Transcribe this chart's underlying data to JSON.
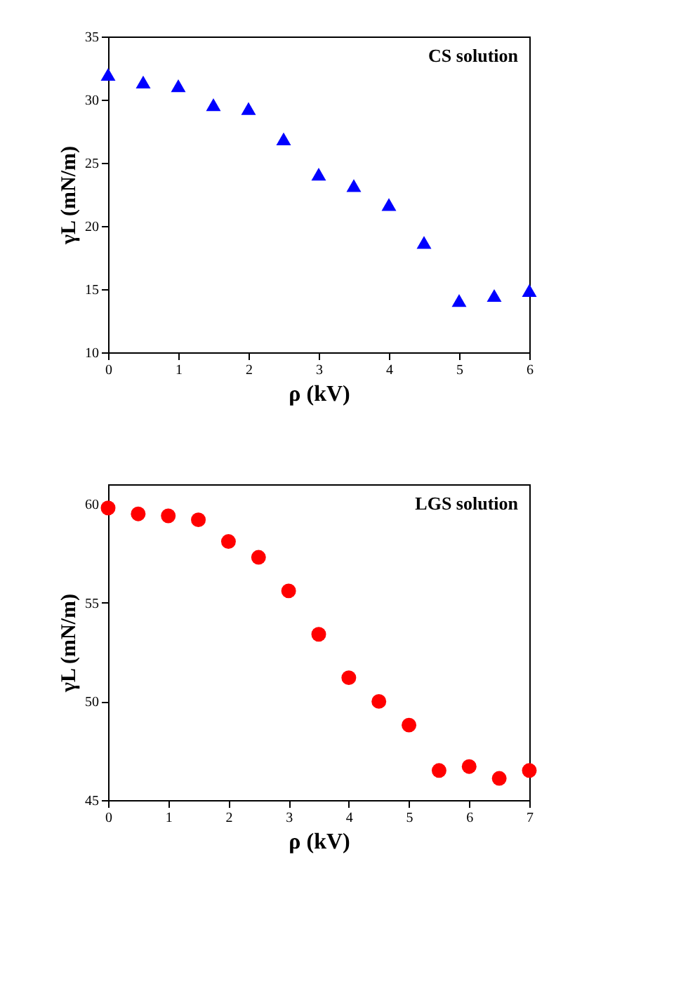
{
  "chart_data": [
    {
      "type": "scatter",
      "xlabel": "ρ (kV)",
      "ylabel": "γL (mN/m)",
      "annotations": [
        "CS solution"
      ],
      "marker": "triangle",
      "x": [
        0,
        0.5,
        1,
        1.5,
        2,
        2.5,
        3,
        3.5,
        4,
        4.5,
        5,
        5.5,
        6
      ],
      "series": [
        {
          "color": "#0000ff",
          "values": [
            32.0,
            31.4,
            31.1,
            29.6,
            29.3,
            26.9,
            24.1,
            23.2,
            21.7,
            18.7,
            14.1,
            14.5,
            14.9
          ]
        }
      ],
      "xlim": [
        0,
        6
      ],
      "xticks": [
        0,
        1,
        2,
        3,
        4,
        5,
        6
      ],
      "ylim": [
        10,
        35
      ],
      "yticks": [
        10,
        15,
        20,
        25,
        30,
        35
      ],
      "grid": false
    },
    {
      "type": "scatter",
      "xlabel": "ρ (kV)",
      "ylabel": "γL (mN/m)",
      "annotations": [
        "LGS solution"
      ],
      "marker": "circle",
      "x": [
        0,
        0.5,
        1,
        1.5,
        2,
        2.5,
        3,
        3.5,
        4,
        4.5,
        5,
        5.5,
        6,
        6.5,
        7
      ],
      "series": [
        {
          "color": "#ff0000",
          "values": [
            59.8,
            59.5,
            59.4,
            59.2,
            58.1,
            57.3,
            55.6,
            53.4,
            51.2,
            50.0,
            48.8,
            46.5,
            46.7,
            46.1,
            46.5
          ]
        }
      ],
      "xlim": [
        0,
        7
      ],
      "xticks": [
        0,
        1,
        2,
        3,
        4,
        5,
        6,
        7
      ],
      "ylim": [
        45,
        61
      ],
      "yticks": [
        45,
        50,
        55,
        60
      ],
      "grid": false
    }
  ]
}
